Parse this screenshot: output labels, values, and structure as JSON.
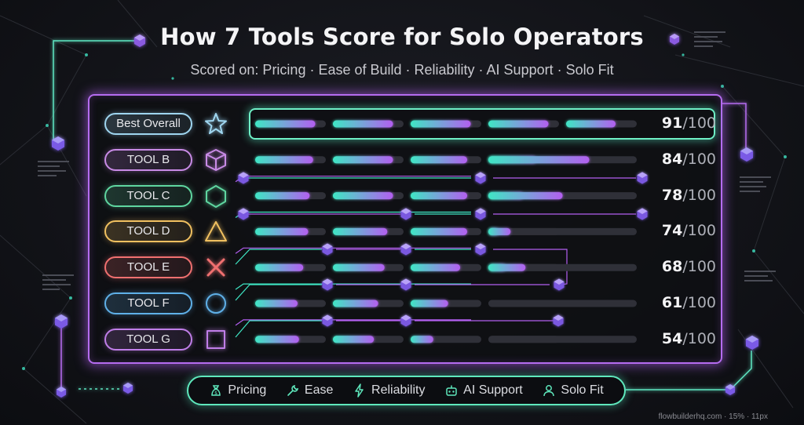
{
  "title": "How 7 Tools Score for Solo Operators",
  "subtitle": "Scored on: Pricing · Ease of Build · Reliability · AI Support · Solo Fit",
  "colors": {
    "teal": "#3fe6c4",
    "purple": "#b35ff0",
    "track": "#2f3038",
    "panel_border": "#b56cf0"
  },
  "chart_data": {
    "type": "bar",
    "criteria": [
      "Pricing",
      "Ease",
      "Reliability",
      "AI Support",
      "Solo Fit"
    ],
    "score_max": 100,
    "tools": [
      {
        "label": "Best Overall",
        "icon": "star-icon",
        "color": "#9fd6f0",
        "score": 91,
        "fills": [
          0.85,
          0.85,
          0.85,
          0.85,
          0.7
        ]
      },
      {
        "label": "TOOL B",
        "icon": "cube-icon",
        "color": "#c98be6",
        "score": 84,
        "fills": [
          0.82,
          0.85,
          0.8,
          0.68,
          0
        ]
      },
      {
        "label": "TOOL C",
        "icon": "hexagon-icon",
        "color": "#5fd6a0",
        "score": 78,
        "fills": [
          0.77,
          0.85,
          0.8,
          0.5,
          0
        ]
      },
      {
        "label": "TOOL D",
        "icon": "triangle-icon",
        "color": "#f0c060",
        "score": 74,
        "fills": [
          0.75,
          0.77,
          0.8,
          0.15,
          0
        ]
      },
      {
        "label": "TOOL E",
        "icon": "x-icon",
        "color": "#f07070",
        "score": 68,
        "fills": [
          0.68,
          0.73,
          0.7,
          0.25,
          0
        ]
      },
      {
        "label": "TOOL F",
        "icon": "circle-icon",
        "color": "#5fb0e8",
        "score": 61,
        "fills": [
          0.6,
          0.64,
          0.53,
          0,
          0
        ]
      },
      {
        "label": "TOOL G",
        "icon": "square-icon",
        "color": "#c07ee8",
        "score": 54,
        "fills": [
          0.62,
          0.58,
          0.32,
          0,
          0
        ]
      }
    ]
  },
  "legend": [
    {
      "label": "Pricing",
      "icon": "money-bag-icon"
    },
    {
      "label": "Ease",
      "icon": "wrench-icon"
    },
    {
      "label": "Reliability",
      "icon": "lightning-icon"
    },
    {
      "label": "AI Support",
      "icon": "robot-icon"
    },
    {
      "label": "Solo Fit",
      "icon": "person-icon"
    }
  ],
  "footer": "flowbuilderhq.com · 15% · 11px"
}
